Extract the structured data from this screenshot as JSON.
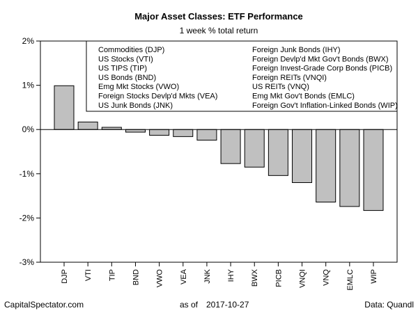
{
  "chart_data": {
    "type": "bar",
    "title": "Major Asset Classes: ETF Performance",
    "subtitle": "1 week % total return",
    "categories": [
      "DJP",
      "VTI",
      "TIP",
      "BND",
      "VWO",
      "VEA",
      "JNK",
      "IHY",
      "BWX",
      "PICB",
      "VNQI",
      "VNQ",
      "EMLC",
      "WIP"
    ],
    "values": [
      0.99,
      0.17,
      0.05,
      -0.06,
      -0.13,
      -0.16,
      -0.24,
      -0.77,
      -0.85,
      -1.04,
      -1.2,
      -1.64,
      -1.74,
      -1.83
    ],
    "ylim": [
      -3,
      2
    ],
    "yticks": [
      2,
      1,
      0,
      -1,
      -2,
      -3
    ],
    "ytick_labels": [
      "2%",
      "1%",
      "0%",
      "-1%",
      "-2%",
      "-3%"
    ],
    "bar_color": "#c0c0c0",
    "legend": {
      "placement": "top",
      "left_column": [
        "Commodities (DJP)",
        "US Stocks (VTI)",
        "US TIPS (TIP)",
        "US Bonds (BND)",
        "Emg Mkt Stocks (VWO)",
        "Foreign Stocks Devlp'd Mkts (VEA)",
        "US Junk Bonds (JNK)"
      ],
      "right_column": [
        "Foreign Junk Bonds (IHY)",
        "Foreign Devlp'd Mkt Gov't Bonds (BWX)",
        "Foreign Invest-Grade Corp Bonds (PICB)",
        "Foreign REITs (VNQI)",
        "US REITs (VNQ)",
        "Emg Mkt Gov't Bonds (EMLC)",
        "Foreign Gov't Inflation-Linked Bonds (WIP)"
      ]
    }
  },
  "footer": {
    "source_left": "CapitalSpectator.com",
    "as_of_label": "as of",
    "as_of_date": "2017-10-27",
    "data_source": "Data: Quandl"
  }
}
